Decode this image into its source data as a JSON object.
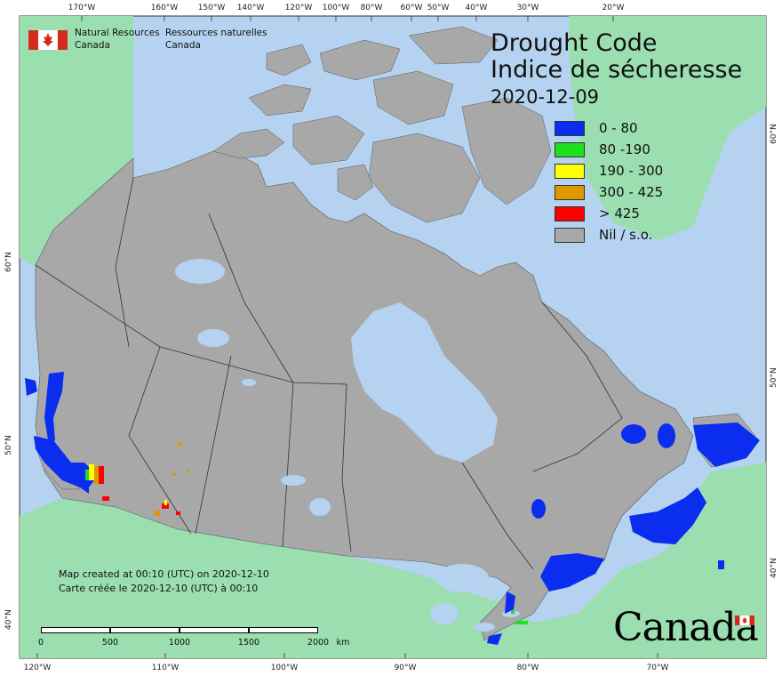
{
  "title": {
    "line1": "Drought Code",
    "line2": "Indice de sécheresse",
    "date": "2020-12-09"
  },
  "legend": [
    {
      "label": "0 - 80",
      "color": "#0a2df0"
    },
    {
      "label": "80 -190",
      "color": "#1ee01e"
    },
    {
      "label": "190 - 300",
      "color": "#ffff00"
    },
    {
      "label": "300 - 425",
      "color": "#dd9a00"
    },
    {
      "label": "> 425",
      "color": "#ff0000"
    },
    {
      "label": "Nil / s.o.",
      "color": "#a8a8a8"
    }
  ],
  "agency": {
    "en_line1": "Natural Resources",
    "en_line2": "Canada",
    "fr_line1": "Ressources naturelles",
    "fr_line2": "Canada"
  },
  "footer": {
    "created_en": "Map created at 00:10 (UTC) on 2020-12-10",
    "created_fr": "Carte créée le 2020-12-10 (UTC) à 00:10"
  },
  "scale": {
    "labels": [
      "0",
      "500",
      "1000",
      "1500",
      "2000"
    ],
    "unit": "km"
  },
  "wordmark": "Canada",
  "graticule": {
    "top": [
      "170°W",
      "160°W",
      "150°W",
      "140°W",
      "120°W",
      "100°W",
      "80°W",
      "60°W",
      "50°W",
      "40°W",
      "30°W",
      "20°W"
    ],
    "bottom": [
      "120°W",
      "110°W",
      "100°W",
      "90°W",
      "80°W",
      "70°W"
    ],
    "left": [
      "60°N",
      "50°N",
      "40°N"
    ],
    "right": [
      "60°N",
      "50°N",
      "40°N"
    ]
  },
  "colors": {
    "ocean": "#b5d3f0",
    "land_foreign": "#9bdfb0",
    "land_canada": "#a8a8a8",
    "borders": "#2b2b2b",
    "lakes": "#b5d3f0"
  }
}
